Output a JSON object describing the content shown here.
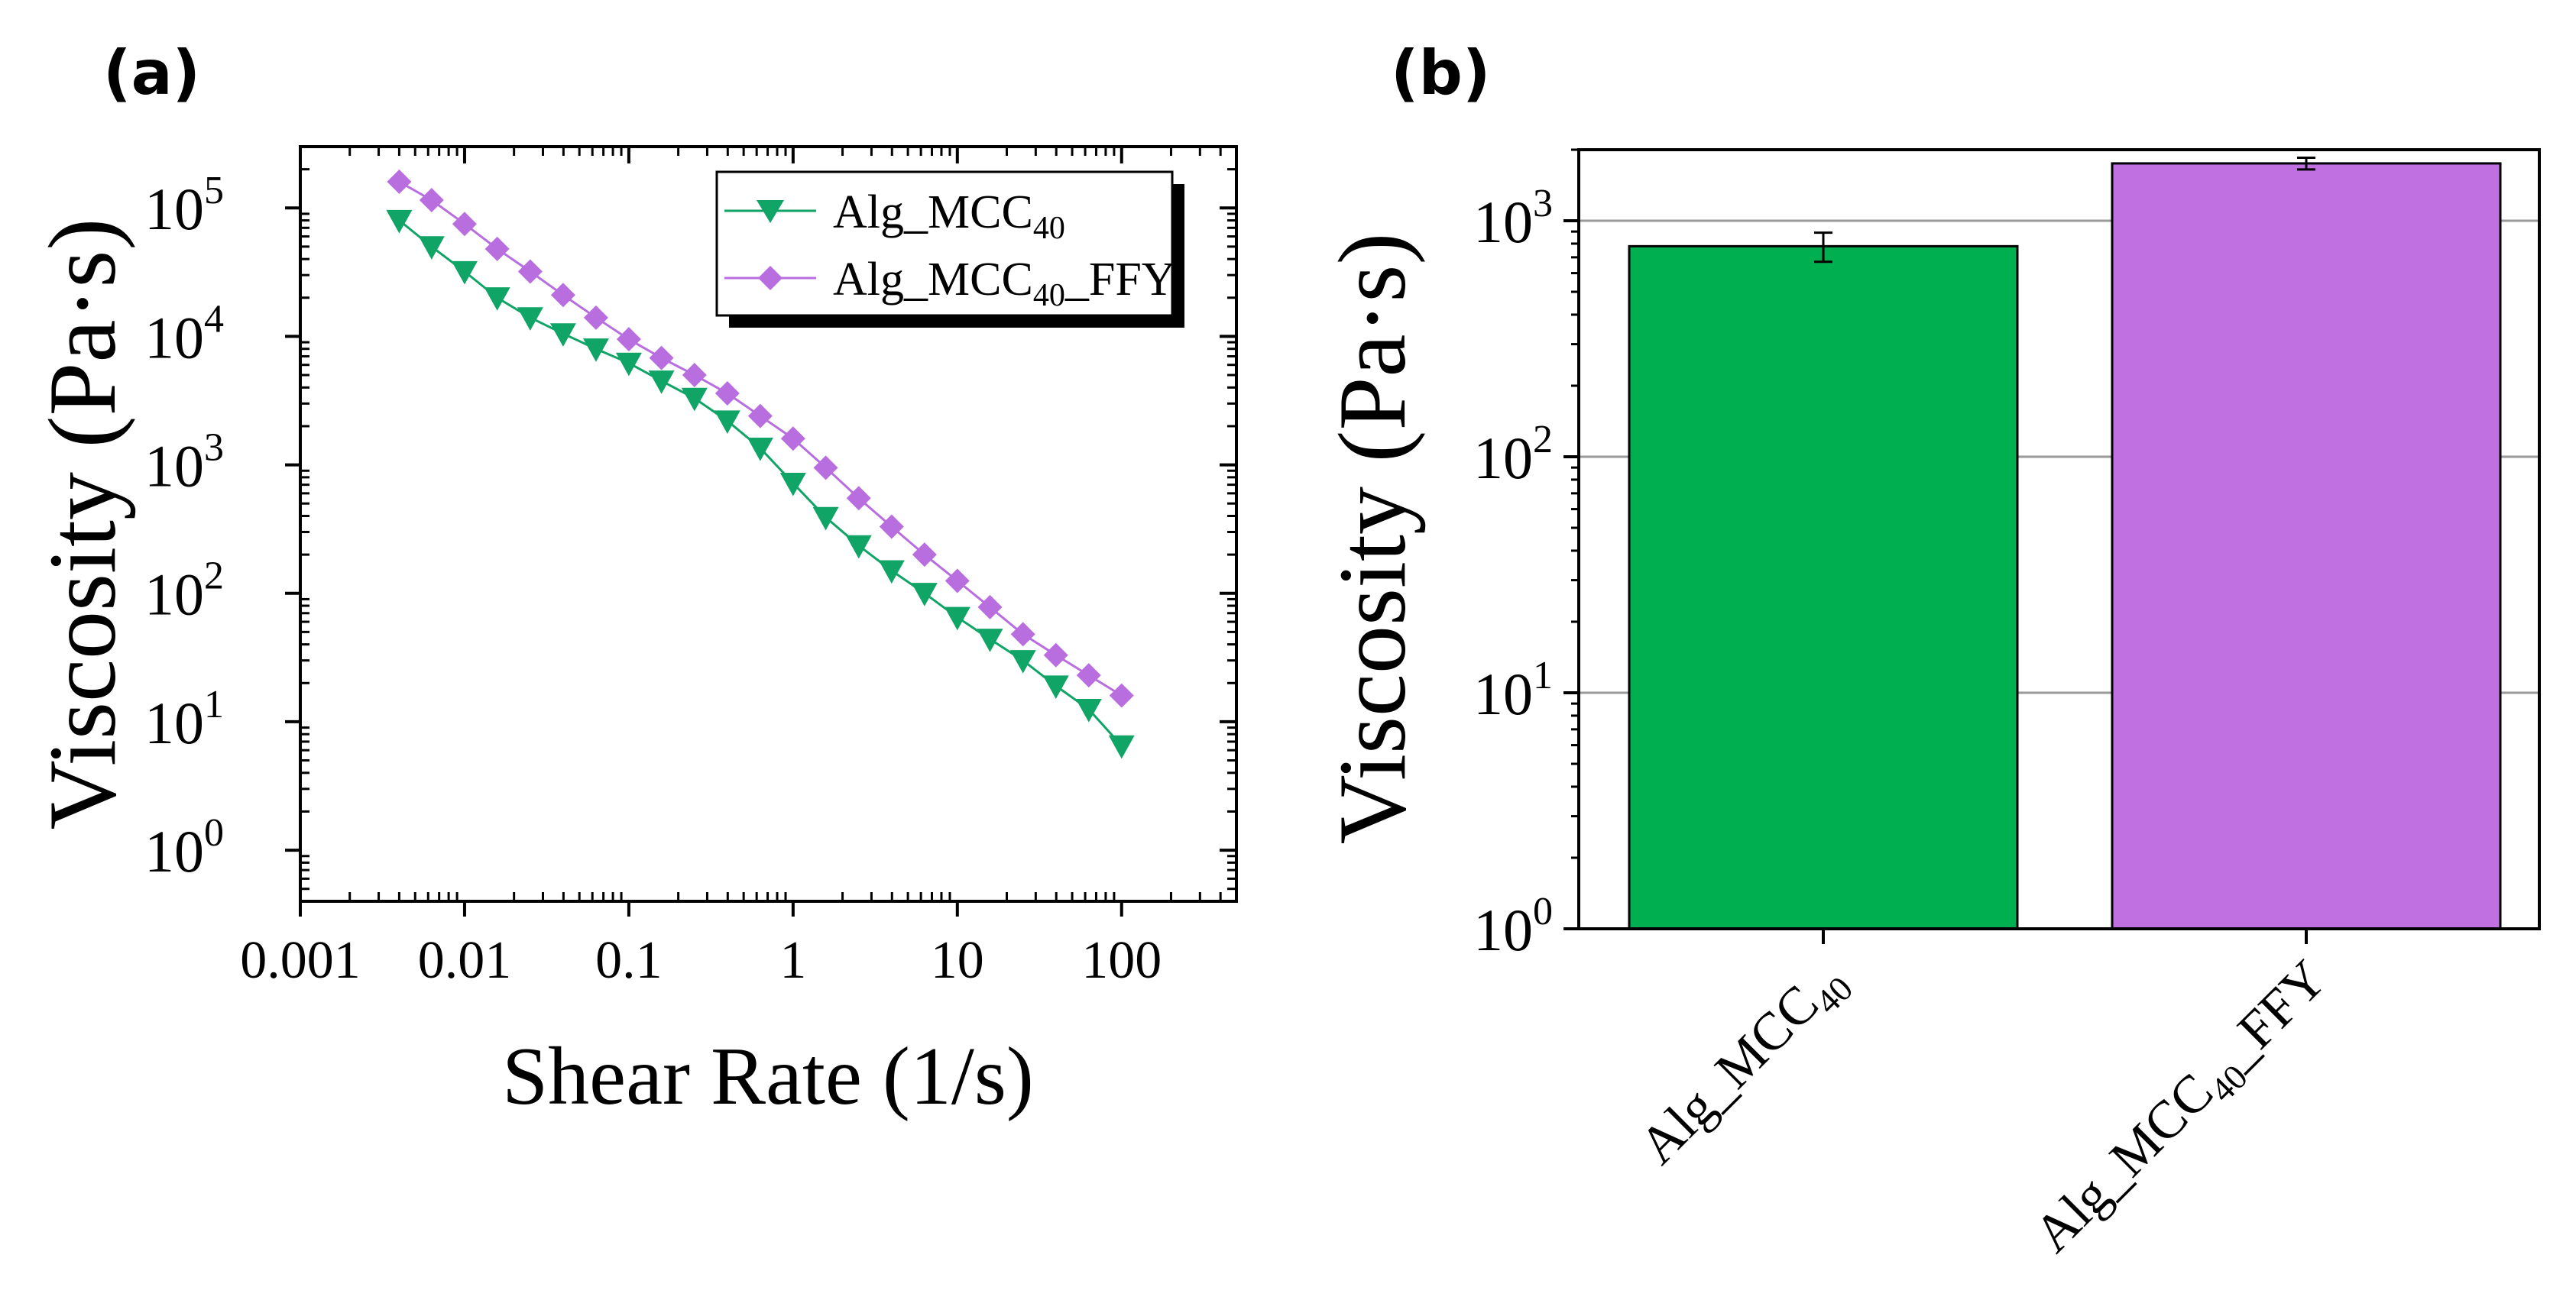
{
  "chart_data": [
    {
      "panel": "(a)",
      "type": "line",
      "xscale": "log",
      "yscale": "log",
      "xlabel": "Shear Rate (1/s)",
      "ylabel": "Viscosity (Pa·s)",
      "xlim": [
        0.001,
        500
      ],
      "ylim": [
        0.4,
        300000
      ],
      "xticks": [
        {
          "v": 0.001,
          "label": "0.001"
        },
        {
          "v": 0.01,
          "label": "0.01"
        },
        {
          "v": 0.1,
          "label": "0.1"
        },
        {
          "v": 1,
          "label": "1"
        },
        {
          "v": 10,
          "label": "10"
        },
        {
          "v": 100,
          "label": "100"
        }
      ],
      "yticks": [
        {
          "v": 1,
          "base": "10",
          "exp": "0"
        },
        {
          "v": 10,
          "base": "10",
          "exp": "1"
        },
        {
          "v": 100,
          "base": "10",
          "exp": "2"
        },
        {
          "v": 1000,
          "base": "10",
          "exp": "3"
        },
        {
          "v": 10000,
          "base": "10",
          "exp": "4"
        },
        {
          "v": 100000,
          "base": "10",
          "exp": "5"
        }
      ],
      "legend_position": "top-right",
      "x": [
        0.004,
        0.0063,
        0.01,
        0.0158,
        0.0251,
        0.0398,
        0.0631,
        0.1,
        0.158,
        0.251,
        0.398,
        0.631,
        1,
        1.58,
        2.51,
        3.98,
        6.31,
        10,
        15.8,
        25.1,
        39.8,
        63.1,
        100
      ],
      "series": [
        {
          "name": "Alg_MCC40_FFY",
          "label_main": "Alg_MCC",
          "label_sub": "40",
          "label_suffix": "_FFY",
          "color": "#b96ee0",
          "marker": "diamond",
          "values": [
            160000,
            115000,
            75000,
            48000,
            32000,
            21000,
            14000,
            9500,
            6800,
            5000,
            3600,
            2400,
            1600,
            950,
            550,
            330,
            200,
            125,
            78,
            48,
            33,
            23,
            16
          ]
        },
        {
          "name": "Alg_MCC40",
          "label_main": "Alg_MCC",
          "label_sub": "40",
          "label_suffix": "",
          "color": "#10a466",
          "marker": "triangle-down",
          "values": [
            80000,
            50000,
            32000,
            20000,
            14000,
            10500,
            8000,
            6200,
            4500,
            3300,
            2200,
            1350,
            720,
            390,
            235,
            150,
            100,
            65,
            44,
            30,
            19,
            12.5,
            6.5
          ]
        }
      ]
    },
    {
      "panel": "(b)",
      "type": "bar",
      "yscale": "log",
      "ylabel": "Viscosity (Pa·s)",
      "ylim": [
        1,
        2000
      ],
      "grid": true,
      "yticks": [
        {
          "v": 1,
          "base": "10",
          "exp": "0"
        },
        {
          "v": 10,
          "base": "10",
          "exp": "1"
        },
        {
          "v": 100,
          "base": "10",
          "exp": "2"
        },
        {
          "v": 1000,
          "base": "10",
          "exp": "3"
        }
      ],
      "categories": [
        {
          "name": "Alg_MCC40",
          "label_main": "Alg_MCC",
          "label_sub": "40",
          "label_suffix": ""
        },
        {
          "name": "Alg_MCC40_FFY",
          "label_main": "Alg_MCC",
          "label_sub": "40",
          "label_suffix": "_FFY"
        }
      ],
      "values": [
        780,
        1750
      ],
      "errors": [
        110,
        100
      ],
      "colors": [
        "#00b050",
        "#c070e0"
      ]
    }
  ]
}
